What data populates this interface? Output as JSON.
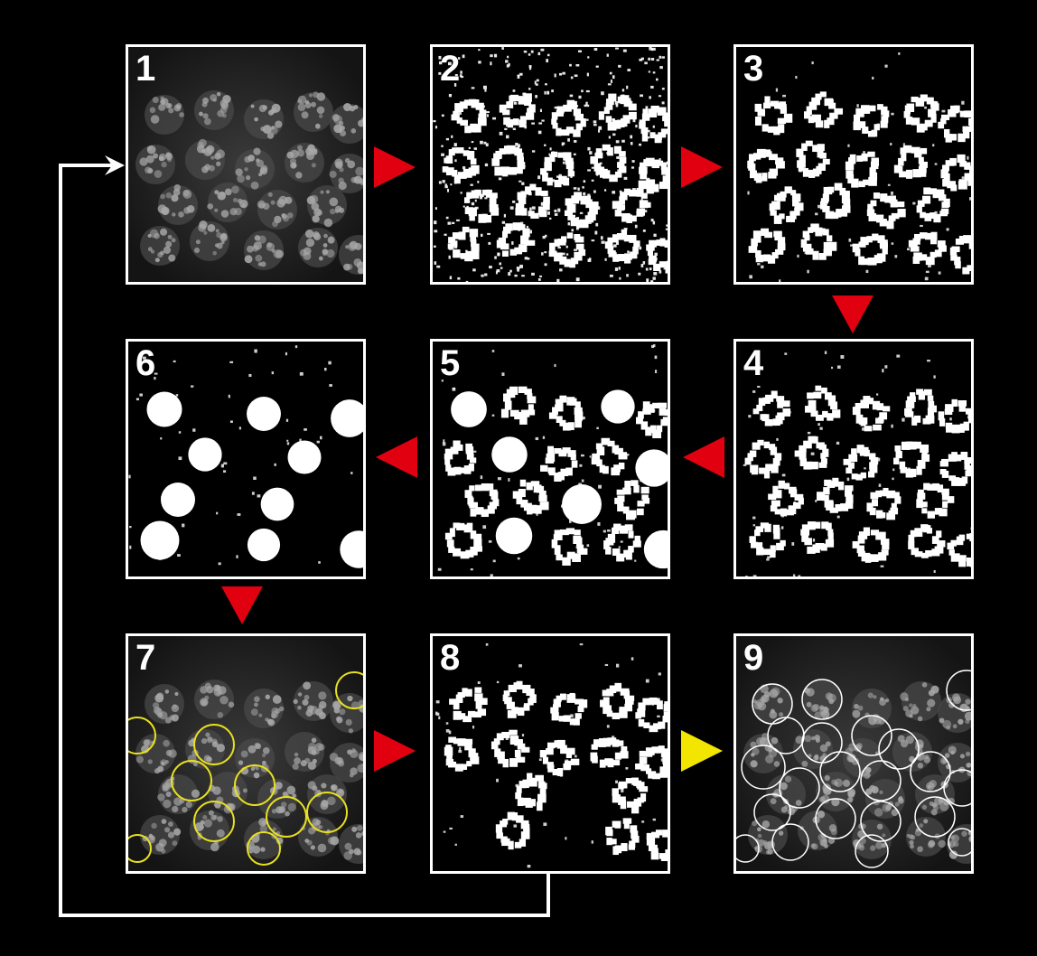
{
  "panels": [
    {
      "label": "1",
      "style": "gray-nuclei"
    },
    {
      "label": "2",
      "style": "binary-noisy"
    },
    {
      "label": "3",
      "style": "binary-clean"
    },
    {
      "label": "4",
      "style": "binary-clean"
    },
    {
      "label": "5",
      "style": "binary-filled"
    },
    {
      "label": "6",
      "style": "binary-large-blobs"
    },
    {
      "label": "7",
      "style": "gray-yellow-circles"
    },
    {
      "label": "8",
      "style": "binary-residual"
    },
    {
      "label": "9",
      "style": "gray-white-circles"
    }
  ],
  "arrows": [
    {
      "from": "1",
      "to": "2",
      "direction": "right",
      "color": "#e0000f"
    },
    {
      "from": "2",
      "to": "3",
      "direction": "right",
      "color": "#e0000f"
    },
    {
      "from": "3",
      "to": "4",
      "direction": "down",
      "color": "#e0000f"
    },
    {
      "from": "4",
      "to": "5",
      "direction": "left",
      "color": "#e0000f"
    },
    {
      "from": "5",
      "to": "6",
      "direction": "left",
      "color": "#e0000f"
    },
    {
      "from": "6",
      "to": "7",
      "direction": "down",
      "color": "#e0000f"
    },
    {
      "from": "7",
      "to": "8",
      "direction": "right",
      "color": "#e0000f"
    },
    {
      "from": "8",
      "to": "9",
      "direction": "right",
      "color": "#f2e600"
    }
  ],
  "loop_connector": {
    "from": "8",
    "to": "1",
    "color": "#ffffff"
  },
  "colors": {
    "background": "#000000",
    "border": "#ffffff",
    "yellow_circle": "#e8e020",
    "white_circle": "#ffffff"
  }
}
